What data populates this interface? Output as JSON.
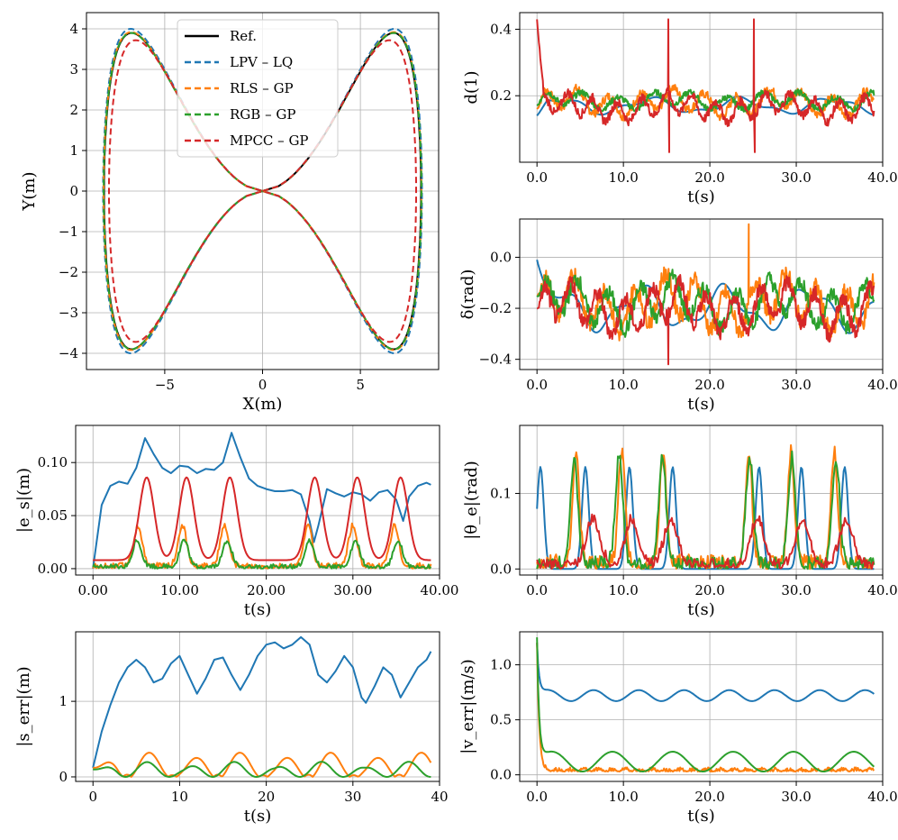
{
  "colors": {
    "ref": "#000000",
    "blue": "#1f77b4",
    "orange": "#ff7f0e",
    "green": "#2ca02c",
    "red": "#d62728"
  },
  "chart_data": [
    {
      "id": "traj",
      "type": "line",
      "xlabel": "X(m)",
      "ylabel": "Y(m)",
      "xlim": [
        -9,
        9
      ],
      "ylim": [
        -4.4,
        4.4
      ],
      "xticks": [
        -5,
        0,
        5
      ],
      "yticks": [
        -4,
        -3,
        -2,
        -1,
        0,
        1,
        2,
        3,
        4
      ],
      "legend": [
        "Ref.",
        "LPV – LQ",
        "RLS – GP",
        "RGB – GP",
        "MPCC – GP"
      ],
      "legend_position": "top-center",
      "series": [
        {
          "name": "Ref.",
          "color": "ref",
          "dash": false,
          "amp_x": 8.1,
          "amp_y": 3.9
        },
        {
          "name": "LPV – LQ",
          "color": "blue",
          "dash": true,
          "amp_x": 8.15,
          "amp_y": 4.0
        },
        {
          "name": "RLS – GP",
          "color": "orange",
          "dash": true,
          "amp_x": 8.12,
          "amp_y": 3.92
        },
        {
          "name": "RGB – GP",
          "color": "green",
          "dash": true,
          "amp_x": 8.12,
          "amp_y": 3.9
        },
        {
          "name": "MPCC – GP",
          "color": "red",
          "dash": true,
          "amp_x": 7.85,
          "amp_y": 3.72
        }
      ]
    },
    {
      "id": "d1",
      "type": "line",
      "xlabel": "t(s)",
      "ylabel": "d(1)",
      "xlim": [
        -2,
        40
      ],
      "ylim": [
        0.0,
        0.45
      ],
      "xticks": [
        0,
        10,
        20,
        30,
        40
      ],
      "yticks": [
        0.2,
        0.4
      ],
      "series": [
        {
          "name": "LPV – LQ",
          "color": "blue",
          "kind": "smooth",
          "base": 0.17,
          "amp": 0.02,
          "freq": 0.6,
          "start": 0.14
        },
        {
          "name": "RLS – GP",
          "color": "orange",
          "kind": "noisy",
          "base": 0.18,
          "amp": 0.03,
          "freq": 1.7,
          "start": 0.16
        },
        {
          "name": "RGB – GP",
          "color": "green",
          "kind": "noisy",
          "base": 0.185,
          "amp": 0.02,
          "freq": 1.5,
          "start": 0.17
        },
        {
          "name": "MPCC – GP",
          "color": "red",
          "kind": "noisy",
          "base": 0.165,
          "amp": 0.03,
          "freq": 2.2,
          "start": 0.43,
          "spikes": [
            [
              0,
              0.43
            ],
            [
              15.2,
              0.43
            ],
            [
              15.3,
              0.03
            ],
            [
              25.1,
              0.43
            ],
            [
              25.2,
              0.03
            ]
          ]
        }
      ]
    },
    {
      "id": "delta",
      "type": "line",
      "xlabel": "t(s)",
      "ylabel": "δ(rad)",
      "xlim": [
        -2,
        40
      ],
      "ylim": [
        -0.44,
        0.15
      ],
      "xticks": [
        0,
        10,
        20,
        30,
        40
      ],
      "yticks": [
        -0.4,
        -0.2,
        0.0
      ],
      "series": [
        {
          "name": "LPV – LQ",
          "color": "blue",
          "kind": "smooth",
          "base": -0.2,
          "amp": 0.07,
          "freq": 0.65,
          "start": -0.01
        },
        {
          "name": "RLS – GP",
          "color": "orange",
          "kind": "noisy",
          "base": -0.18,
          "amp": 0.08,
          "freq": 1.8,
          "start": -0.15,
          "spikes": [
            [
              24.5,
              0.13
            ]
          ]
        },
        {
          "name": "RGB – GP",
          "color": "green",
          "kind": "noisy",
          "base": -0.18,
          "amp": 0.07,
          "freq": 1.7,
          "start": -0.15
        },
        {
          "name": "MPCC – GP",
          "color": "red",
          "kind": "noisy",
          "base": -0.2,
          "amp": 0.07,
          "freq": 2.0,
          "start": -0.2,
          "spikes": [
            [
              15.2,
              -0.42
            ]
          ]
        }
      ]
    },
    {
      "id": "es",
      "type": "line",
      "xlabel": "t(s)",
      "ylabel": "|e_s|(m)",
      "xlim": [
        -2,
        40
      ],
      "ylim": [
        -0.006,
        0.135
      ],
      "xticks": [
        0,
        10,
        20,
        30,
        40
      ],
      "yticks": [
        0.0,
        0.05,
        0.1
      ],
      "series": [
        {
          "name": "LPV – LQ",
          "color": "blue",
          "kind": "points",
          "points": [
            [
              0,
              0
            ],
            [
              1,
              0.06
            ],
            [
              2,
              0.078
            ],
            [
              3,
              0.082
            ],
            [
              4,
              0.08
            ],
            [
              5,
              0.095
            ],
            [
              6,
              0.123
            ],
            [
              7,
              0.108
            ],
            [
              8,
              0.095
            ],
            [
              9,
              0.09
            ],
            [
              10,
              0.097
            ],
            [
              11,
              0.096
            ],
            [
              12,
              0.09
            ],
            [
              13,
              0.094
            ],
            [
              14,
              0.093
            ],
            [
              15,
              0.1
            ],
            [
              16,
              0.128
            ],
            [
              17,
              0.105
            ],
            [
              18,
              0.085
            ],
            [
              19,
              0.078
            ],
            [
              20,
              0.075
            ],
            [
              21,
              0.073
            ],
            [
              22,
              0.073
            ],
            [
              23,
              0.074
            ],
            [
              24,
              0.07
            ],
            [
              25,
              0.045
            ],
            [
              25.5,
              0.025
            ],
            [
              26,
              0.04
            ],
            [
              27,
              0.075
            ],
            [
              28,
              0.071
            ],
            [
              29,
              0.068
            ],
            [
              30,
              0.072
            ],
            [
              31,
              0.07
            ],
            [
              32,
              0.064
            ],
            [
              33,
              0.072
            ],
            [
              34,
              0.074
            ],
            [
              35,
              0.065
            ],
            [
              35.8,
              0.045
            ],
            [
              36.5,
              0.068
            ],
            [
              37.5,
              0.078
            ],
            [
              38.5,
              0.081
            ],
            [
              39,
              0.079
            ]
          ]
        },
        {
          "name": "RLS – GP",
          "color": "orange",
          "kind": "bumps",
          "peaks": [
            5.2,
            10.3,
            15.2,
            24.8,
            30.0,
            34.8
          ],
          "height": 0.038,
          "width": 0.7,
          "noise": 0.004
        },
        {
          "name": "RGB – GP",
          "color": "green",
          "kind": "bumps",
          "peaks": [
            5.1,
            10.5,
            15.5,
            25.0,
            30.3,
            35.2
          ],
          "height": 0.025,
          "width": 0.7,
          "noise": 0.003
        },
        {
          "name": "MPCC – GP",
          "color": "red",
          "kind": "bumps",
          "peaks": [
            6.2,
            10.8,
            15.8,
            25.6,
            30.5,
            35.5
          ],
          "height": 0.078,
          "width": 1.2,
          "noise": 0.0,
          "floor": 0.008
        }
      ]
    },
    {
      "id": "thetae",
      "type": "line",
      "xlabel": "t(s)",
      "ylabel": "|θ_e|(rad)",
      "xlim": [
        -2,
        40
      ],
      "ylim": [
        -0.008,
        0.19
      ],
      "xticks": [
        0,
        10,
        20,
        30,
        40
      ],
      "yticks": [
        0.0,
        0.1
      ],
      "series": [
        {
          "name": "LPV – LQ",
          "color": "blue",
          "kind": "bumps",
          "peaks": [
            0.4,
            5.6,
            10.7,
            15.7,
            25.7,
            30.6,
            35.6
          ],
          "height": 0.135,
          "width": 0.55,
          "noise": 0.0
        },
        {
          "name": "RLS – GP",
          "color": "orange",
          "kind": "bumps",
          "peaks": [
            4.5,
            9.8,
            14.6,
            24.5,
            29.4,
            34.4
          ],
          "height": 0.145,
          "width": 0.55,
          "noise": 0.014
        },
        {
          "name": "RGB – GP",
          "color": "green",
          "kind": "bumps",
          "peaks": [
            4.3,
            9.5,
            14.5,
            24.6,
            29.5,
            34.6
          ],
          "height": 0.14,
          "width": 0.6,
          "noise": 0.012
        },
        {
          "name": "MPCC – GP",
          "color": "red",
          "kind": "bumps",
          "peaks": [
            6.5,
            11.0,
            15.5,
            25.5,
            30.7,
            35.8
          ],
          "height": 0.06,
          "width": 1.1,
          "noise": 0.01
        }
      ]
    },
    {
      "id": "serr",
      "type": "line",
      "xlabel": "t(s)",
      "ylabel": "|s_err|(m)",
      "xlim": [
        -2,
        40
      ],
      "ylim": [
        -0.06,
        1.92
      ],
      "xticks": [
        0,
        10,
        20,
        30,
        40
      ],
      "yticks": [
        0,
        1
      ],
      "series": [
        {
          "name": "LPV – LQ",
          "color": "blue",
          "kind": "points",
          "points": [
            [
              0,
              0.12
            ],
            [
              1,
              0.6
            ],
            [
              2,
              0.95
            ],
            [
              3,
              1.25
            ],
            [
              4,
              1.45
            ],
            [
              5,
              1.55
            ],
            [
              6,
              1.45
            ],
            [
              7,
              1.25
            ],
            [
              8,
              1.3
            ],
            [
              9,
              1.5
            ],
            [
              10,
              1.6
            ],
            [
              11,
              1.35
            ],
            [
              12,
              1.1
            ],
            [
              13,
              1.3
            ],
            [
              14,
              1.55
            ],
            [
              15,
              1.58
            ],
            [
              16,
              1.35
            ],
            [
              17,
              1.15
            ],
            [
              18,
              1.35
            ],
            [
              19,
              1.6
            ],
            [
              20,
              1.75
            ],
            [
              21,
              1.78
            ],
            [
              22,
              1.7
            ],
            [
              23,
              1.75
            ],
            [
              24,
              1.85
            ],
            [
              25,
              1.75
            ],
            [
              26,
              1.35
            ],
            [
              27,
              1.25
            ],
            [
              28,
              1.4
            ],
            [
              29,
              1.6
            ],
            [
              30,
              1.45
            ],
            [
              31,
              1.05
            ],
            [
              31.5,
              0.98
            ],
            [
              32.5,
              1.2
            ],
            [
              33.5,
              1.45
            ],
            [
              34.5,
              1.35
            ],
            [
              35.5,
              1.05
            ],
            [
              36.5,
              1.25
            ],
            [
              37.5,
              1.45
            ],
            [
              38.5,
              1.55
            ],
            [
              39,
              1.66
            ]
          ]
        },
        {
          "name": "RLS – GP",
          "color": "orange",
          "kind": "osc",
          "base": 0.15,
          "amp": 0.18,
          "freq": 1.2,
          "start": 0.12
        },
        {
          "name": "RGB – GP",
          "color": "green",
          "kind": "osc",
          "base": 0.1,
          "amp": 0.1,
          "freq": 1.25,
          "start": 0.1
        }
      ]
    },
    {
      "id": "verr",
      "type": "line",
      "xlabel": "t(s)",
      "ylabel": "|v_err|(m/s)",
      "xlim": [
        -2,
        40
      ],
      "ylim": [
        -0.06,
        1.3
      ],
      "xticks": [
        0,
        10,
        20,
        30,
        40
      ],
      "yticks": [
        0.0,
        0.5,
        1.0
      ],
      "series": [
        {
          "name": "LPV – LQ",
          "color": "blue",
          "kind": "decay",
          "base": 0.72,
          "amp": 0.05,
          "freq": 1.2,
          "start": 1.2
        },
        {
          "name": "RLS – GP",
          "color": "orange",
          "kind": "decaynoisy",
          "base": 0.03,
          "amp": 0.04,
          "freq": 2.0,
          "start": 1.2
        },
        {
          "name": "RGB – GP",
          "color": "green",
          "kind": "decay",
          "base": 0.12,
          "amp": 0.09,
          "freq": 0.9,
          "start": 1.25
        }
      ]
    }
  ]
}
